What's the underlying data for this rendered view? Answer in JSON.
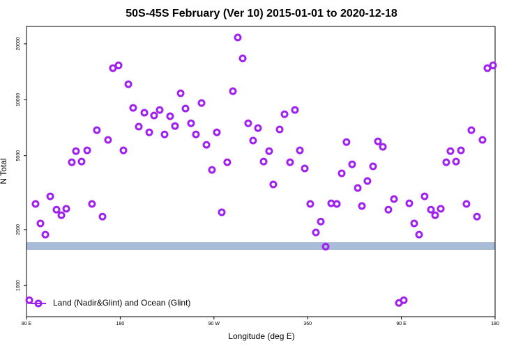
{
  "chart_data": {
    "type": "scatter",
    "title": "50S-45S February (Ver 10)   2015-01-01 to 2020-12-18",
    "xlabel": "Longitude (deg E)",
    "ylabel": "N Total",
    "log_y": true,
    "legend": "lower left",
    "xlim": [
      90,
      540
    ],
    "xticks": [
      {
        "value": 90,
        "label": "90 E"
      },
      {
        "value": 180,
        "label": "180"
      },
      {
        "value": 270,
        "label": "90 W"
      },
      360,
      {
        "value": 450,
        "label": "90 E"
      },
      {
        "value": 540,
        "label": "180"
      }
    ],
    "ylim": [
      680,
      24800
    ],
    "yticks": [
      1000,
      2000,
      5000,
      10000,
      20000
    ],
    "series": [
      {
        "name": "Land (Nadir&Glint) and Ocean (Glint)",
        "color": "#a020f0",
        "x": [
          92.7,
          98.7,
          103.4,
          108.1,
          112.8,
          118.8,
          123.5,
          128.2,
          133.5,
          137.5,
          142.9,
          148.3,
          152.9,
          157.6,
          163.0,
          168.3,
          173.0,
          178.4,
          183.1,
          187.8,
          192.4,
          197.8,
          203.2,
          207.9,
          212.5,
          217.9,
          222.6,
          227.9,
          232.6,
          238.0,
          242.7,
          248.0,
          252.7,
          258.1,
          262.8,
          268.1,
          272.8,
          277.5,
          282.8,
          288.2,
          292.9,
          297.6,
          302.9,
          307.6,
          312.3,
          317.7,
          323.0,
          327.0,
          333.1,
          337.8,
          343.1,
          347.8,
          352.5,
          357.2,
          362.5,
          367.9,
          372.6,
          377.3,
          382.6,
          388.0,
          392.7,
          397.3,
          402.7,
          408.1,
          412.1,
          417.4,
          422.8,
          427.5,
          432.2,
          437.5,
          442.9,
          447.6,
          452.3,
          457.6,
          462.3,
          467.0,
          472.3,
          478.4,
          482.4,
          487.8,
          493.1,
          497.1,
          502.5,
          507.2,
          512.5,
          517.2,
          522.6,
          527.9,
          532.6,
          538.0
        ],
        "values": [
          834,
          2750,
          2160,
          1880,
          3020,
          2560,
          2390,
          2590,
          4610,
          5290,
          4650,
          5340,
          2750,
          6860,
          2350,
          6080,
          14790,
          15310,
          5340,
          12120,
          9040,
          7160,
          8510,
          6680,
          8220,
          8810,
          6510,
          8150,
          7220,
          10840,
          8960,
          7470,
          6510,
          9600,
          5720,
          4190,
          6680,
          2480,
          4610,
          11120,
          21620,
          16690,
          7470,
          6030,
          7040,
          4650,
          5290,
          3500,
          6920,
          8360,
          4610,
          8810,
          5340,
          4270,
          2750,
          1930,
          2210,
          1620,
          2770,
          2750,
          4020,
          5920,
          4490,
          3350,
          2680,
          3650,
          4380,
          5970,
          5580,
          2560,
          2920,
          806,
          834,
          2770,
          2160,
          1880,
          3020,
          2560,
          2390,
          2590,
          4610,
          5290,
          4650,
          5340,
          2750,
          6860,
          2350,
          6080,
          14790,
          15310
        ]
      }
    ]
  }
}
